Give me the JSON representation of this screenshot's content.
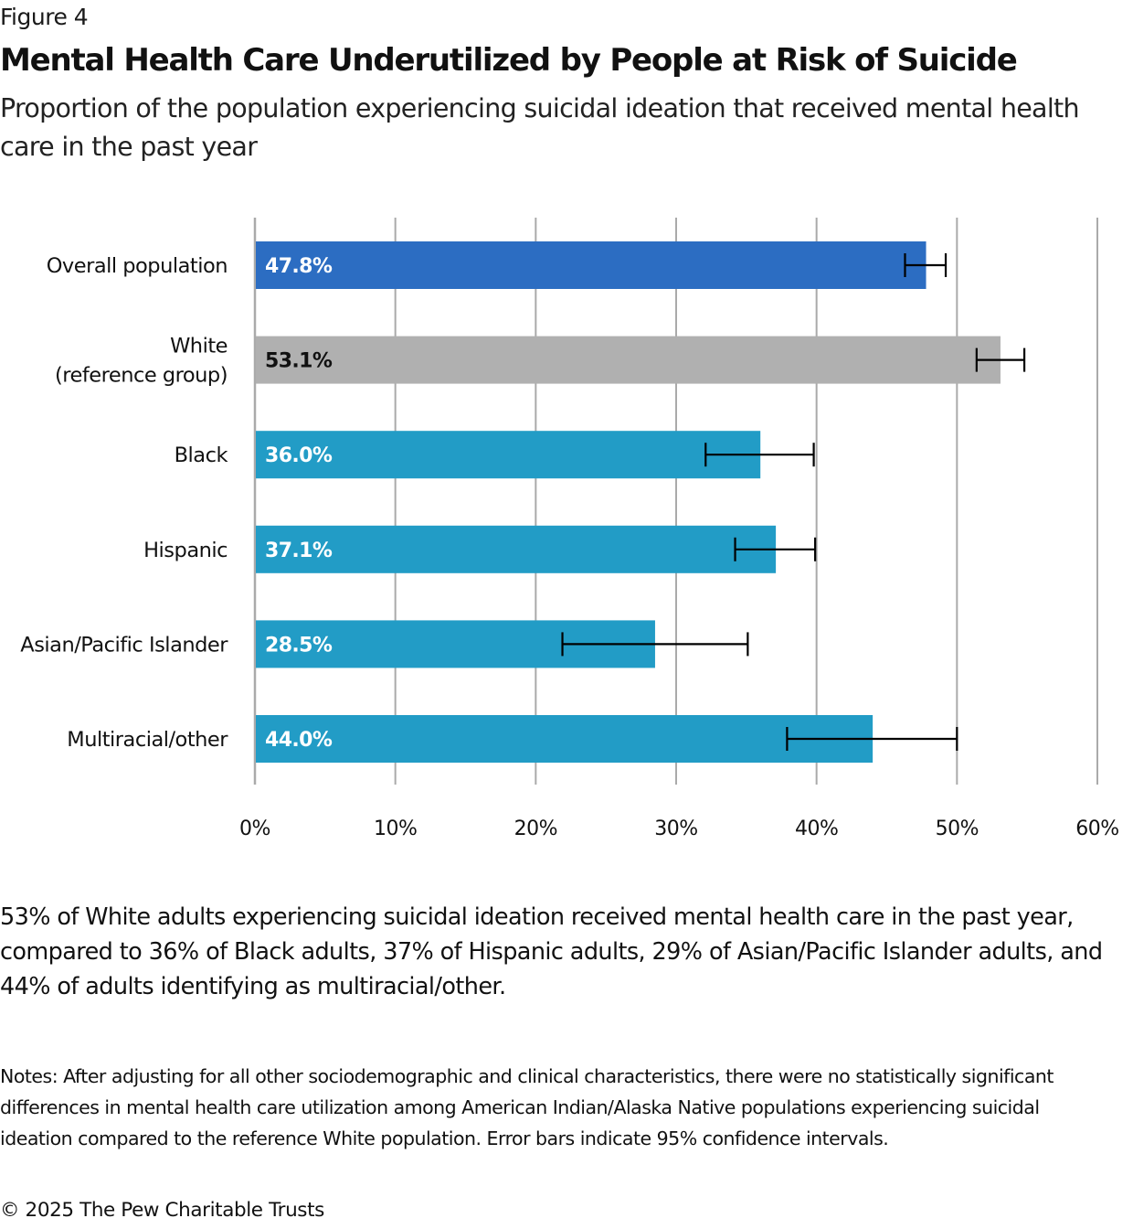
{
  "figure_label": "Figure 4",
  "title": "Mental Health Care Underutilized by People at Risk of Suicide",
  "subtitle": "Proportion of the population experiencing suicidal ideation that received mental health care in the past year",
  "summary": "53% of White adults experiencing suicidal ideation received mental health care in the past year, compared to 36% of Black adults, 37% of Hispanic adults, 29% of Asian/Pacific Islander adults, and 44% of adults identifying as multiracial/other.",
  "notes": "Notes: After adjusting for all other sociodemographic and clinical characteristics, there were no statistically significant differences in mental health care utilization among American Indian/Alaska Native populations experiencing suicidal ideation compared to the reference White population. Error bars indicate 95% confidence intervals.",
  "copyright": "© 2025 The Pew Charitable Trusts",
  "chart_data": {
    "type": "bar",
    "orientation": "horizontal",
    "title": "Mental Health Care Underutilized by People at Risk of Suicide",
    "xlabel": "",
    "ylabel": "",
    "xlim": [
      0,
      60
    ],
    "grid": true,
    "x_ticks": [
      "0%",
      "10%",
      "20%",
      "30%",
      "40%",
      "50%",
      "60%"
    ],
    "x_tick_values": [
      0,
      10,
      20,
      30,
      40,
      50,
      60
    ],
    "categories": [
      [
        "Overall population"
      ],
      [
        "White",
        "(reference group)"
      ],
      [
        "Black"
      ],
      [
        "Hispanic"
      ],
      [
        "Asian/Pacific Islander"
      ],
      [
        "Multiracial/other"
      ]
    ],
    "values": [
      47.8,
      53.1,
      36.0,
      37.1,
      28.5,
      44.0
    ],
    "data_labels": [
      "47.8%",
      "53.1%",
      "36.0%",
      "37.1%",
      "28.5%",
      "44.0%"
    ],
    "ci_low": [
      46.3,
      51.4,
      32.1,
      34.2,
      21.9,
      37.9
    ],
    "ci_high": [
      49.2,
      54.8,
      39.8,
      39.9,
      35.1,
      50.0
    ],
    "colors": [
      "#2c6dc2",
      "#b0b0b0",
      "#229cc6",
      "#229cc6",
      "#229cc6",
      "#229cc6"
    ],
    "label_colors": [
      "#ffffff",
      "#111111",
      "#ffffff",
      "#ffffff",
      "#ffffff",
      "#ffffff"
    ],
    "gridline_color": "#aaaaaa",
    "errorbar_color": "#000000"
  }
}
